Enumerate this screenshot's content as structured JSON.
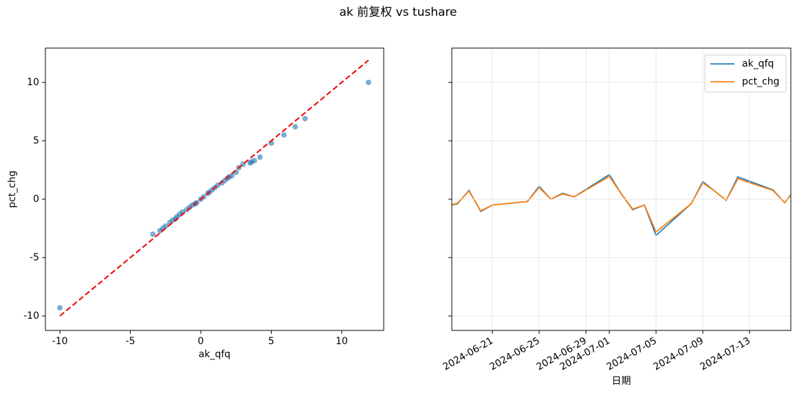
{
  "title": "ak 前复权 vs tushare",
  "chart_data": [
    {
      "type": "scatter",
      "x_label": "ak_qfq",
      "y_label": "pct_chg",
      "color": "#1f77b4",
      "x": [
        -10,
        11.9,
        7.4,
        6.7,
        5.9,
        5.0,
        4.2,
        3.8,
        3.6,
        3.5,
        3.0,
        2.7,
        2.5,
        2.2,
        2.0,
        1.9,
        1.7,
        1.5,
        1.2,
        1.0,
        0.8,
        0.6,
        0.5,
        0.2,
        0,
        -0.3,
        -0.4,
        -0.6,
        -0.8,
        -1.0,
        -1.3,
        -1.5,
        -1.7,
        -1.8,
        -2.0,
        -2.2,
        -2.5,
        -2.7,
        -2.9,
        -3.4
      ],
      "y": [
        -9.3,
        10,
        6.9,
        6.2,
        5.5,
        4.8,
        3.6,
        3.3,
        3.2,
        3.1,
        3.0,
        2.7,
        2.3,
        2.0,
        1.9,
        1.8,
        1.6,
        1.4,
        1.2,
        1.0,
        0.8,
        0.6,
        0.5,
        0.2,
        0,
        -0.3,
        -0.4,
        -0.5,
        -0.7,
        -0.9,
        -1.1,
        -1.3,
        -1.5,
        -1.7,
        -1.8,
        -2.0,
        -2.3,
        -2.5,
        -2.7,
        -3.0
      ],
      "lines": [
        {
          "color": "#ee1111",
          "style": "dashed",
          "x": [
            -10,
            11.9
          ],
          "y": [
            -10,
            11.9
          ]
        }
      ],
      "xlim": [
        -11.03,
        12.98
      ],
      "ylim": [
        -11.24,
        12.94
      ],
      "xticks": [
        -10,
        -5,
        0,
        5,
        10
      ],
      "yticks": [
        -10,
        -5,
        0,
        5,
        10
      ],
      "grid": false
    },
    {
      "type": "line",
      "x_label": "日期",
      "legend": "upper right",
      "grid": true,
      "show_ytick_labels": false,
      "x": [
        "2024-06-17",
        "2024-06-18",
        "2024-06-19",
        "2024-06-20",
        "2024-06-21",
        "2024-06-24",
        "2024-06-25",
        "2024-06-26",
        "2024-06-27",
        "2024-06-28",
        "2024-07-01",
        "2024-07-02",
        "2024-07-03",
        "2024-07-04",
        "2024-07-05",
        "2024-07-08",
        "2024-07-09",
        "2024-07-10",
        "2024-07-11",
        "2024-07-12",
        "2024-07-15",
        "2024-07-16",
        "2024-07-17"
      ],
      "series": [
        {
          "name": "ak_qfq",
          "color": "#1f77b4",
          "values": [
            -0.6,
            -0.4,
            0.75,
            -1.05,
            -0.5,
            -0.2,
            1.1,
            0,
            0.5,
            0.2,
            2.1,
            0.5,
            -0.9,
            -0.5,
            -3.1,
            -0.4,
            1.5,
            0.7,
            -0.1,
            1.9,
            0.8,
            -0.3,
            1.0
          ]
        },
        {
          "name": "pct_chg",
          "color": "#ff7f0e",
          "values": [
            -0.6,
            -0.35,
            0.7,
            -1.0,
            -0.5,
            -0.2,
            1.0,
            0,
            0.45,
            0.2,
            1.95,
            0.5,
            -0.85,
            -0.5,
            -2.8,
            -0.4,
            1.4,
            0.7,
            -0.1,
            1.75,
            0.75,
            -0.3,
            0.95
          ]
        }
      ],
      "xlim": [
        "2024-06-17T12:40",
        "2024-07-16T12:40"
      ],
      "ylim": [
        -11.24,
        12.94
      ],
      "xticks": [
        "2024-06-21",
        "2024-06-25",
        "2024-06-29",
        "2024-07-01",
        "2024-07-05",
        "2024-07-09",
        "2024-07-13"
      ],
      "yticks": [
        -10,
        -5,
        0,
        5,
        10
      ]
    }
  ]
}
